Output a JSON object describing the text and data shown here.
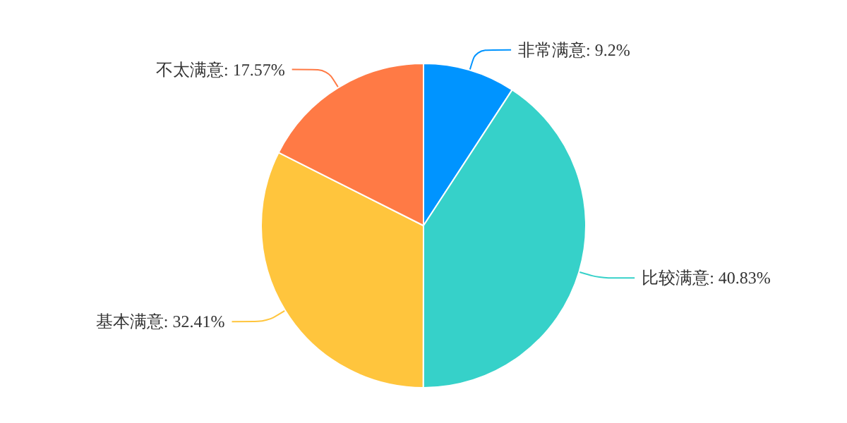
{
  "chart_data": {
    "type": "pie",
    "categories": [
      "非常满意",
      "比较满意",
      "基本满意",
      "不太满意"
    ],
    "values": [
      9.2,
      40.83,
      32.41,
      17.57
    ],
    "value_labels": [
      "9.2%",
      "40.83%",
      "32.41%",
      "17.57%"
    ],
    "colors": [
      "#0094ff",
      "#36d1c9",
      "#ffc53d",
      "#ff7a45"
    ],
    "legend": false
  }
}
